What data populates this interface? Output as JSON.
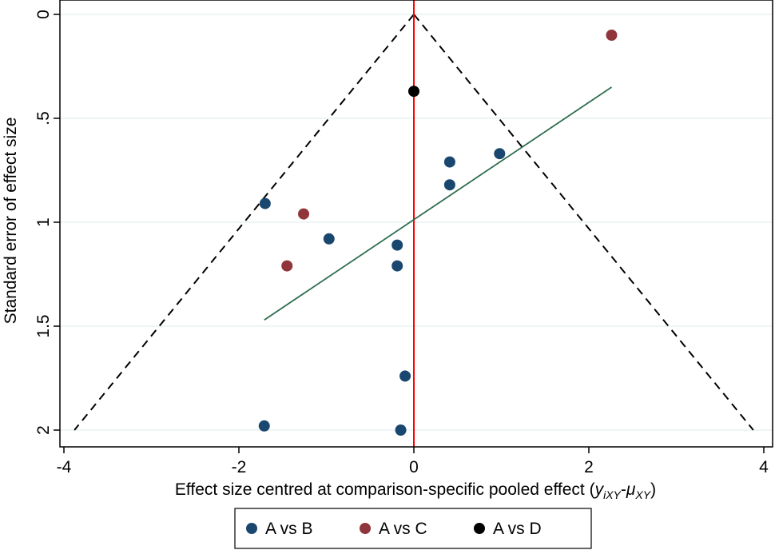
{
  "chart_data": {
    "type": "scatter",
    "title": "",
    "xlabel": "Effect size centred at comparison-specific pooled effect (",
    "xlabel_math": {
      "y": "y",
      "y_sub": "iXY",
      "dash": "-",
      "mu": "μ",
      "mu_sub": "XY",
      "close": ")"
    },
    "ylabel": "Standard error of effect size",
    "xlim": [
      -4,
      4
    ],
    "ylim": [
      0,
      2
    ],
    "y_reversed": true,
    "x_ticks": [
      -4,
      -2,
      0,
      2,
      4
    ],
    "x_tick_labels": [
      "-4",
      "-2",
      "0",
      "2",
      "4"
    ],
    "y_ticks": [
      0,
      0.5,
      1,
      1.5,
      2
    ],
    "y_tick_labels": [
      "0",
      ".5",
      "1",
      "1.5",
      "2"
    ],
    "grid": true,
    "series": [
      {
        "name": "A vs B",
        "color": "#1a476f",
        "points": [
          [
            -1.7,
            0.91
          ],
          [
            -0.97,
            1.08
          ],
          [
            -0.19,
            1.11
          ],
          [
            -0.19,
            1.21
          ],
          [
            0.41,
            0.71
          ],
          [
            0.41,
            0.82
          ],
          [
            0.98,
            0.67
          ],
          [
            -0.1,
            1.74
          ],
          [
            -1.71,
            1.98
          ],
          [
            -0.15,
            2.0
          ]
        ]
      },
      {
        "name": "A vs C",
        "color": "#90353b",
        "points": [
          [
            2.26,
            0.1
          ],
          [
            -1.26,
            0.96
          ],
          [
            -1.45,
            1.21
          ]
        ]
      },
      {
        "name": "A vs D",
        "color": "#000000",
        "points": [
          [
            0.0,
            0.37
          ]
        ]
      }
    ],
    "funnel": {
      "apex": [
        0,
        0
      ],
      "left_base": [
        -3.88,
        2.0
      ],
      "right_base": [
        3.88,
        2.0
      ],
      "color": "#000000",
      "style": "dashed"
    },
    "null_line": {
      "x": 0,
      "color": "#ff0000"
    },
    "regression_line": {
      "from": [
        -1.71,
        1.47
      ],
      "to": [
        2.26,
        0.35
      ],
      "color": "#2d6d4e"
    },
    "legend": {
      "position": "bottom"
    }
  }
}
